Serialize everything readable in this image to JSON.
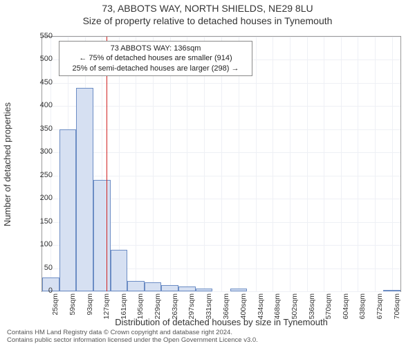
{
  "chart": {
    "type": "histogram",
    "title1": "73, ABBOTS WAY, NORTH SHIELDS, NE29 8LU",
    "title2": "Size of property relative to detached houses in Tynemouth",
    "title_fontsize": 14,
    "ylabel": "Number of detached properties",
    "xlabel": "Distribution of detached houses by size in Tynemouth",
    "label_fontsize": 13,
    "tick_fontsize": 11,
    "background_color": "#ffffff",
    "grid_color": "#eef0f5",
    "axis_color": "#999999",
    "bar_fill": "#d6e0f2",
    "bar_stroke": "#6b8cc4",
    "refline_color": "#d02020",
    "refline_x": 136,
    "ylim": [
      0,
      550
    ],
    "ytick_step": 50,
    "yticks_labels": [
      "0",
      "50",
      "100",
      "150",
      "200",
      "250",
      "300",
      "350",
      "400",
      "450",
      "500",
      "550"
    ],
    "xtick_labels": [
      "25sqm",
      "59sqm",
      "93sqm",
      "127sqm",
      "161sqm",
      "195sqm",
      "229sqm",
      "263sqm",
      "297sqm",
      "331sqm",
      "366sqm",
      "400sqm",
      "434sqm",
      "468sqm",
      "502sqm",
      "536sqm",
      "570sqm",
      "604sqm",
      "638sqm",
      "672sqm",
      "706sqm"
    ],
    "xtick_positions": [
      25,
      59,
      93,
      127,
      161,
      195,
      229,
      263,
      297,
      331,
      366,
      400,
      434,
      468,
      502,
      536,
      570,
      604,
      638,
      672,
      706
    ],
    "xlim": [
      8,
      723
    ],
    "bars": [
      {
        "x": 25,
        "v": 30
      },
      {
        "x": 59,
        "v": 350
      },
      {
        "x": 93,
        "v": 440
      },
      {
        "x": 127,
        "v": 240
      },
      {
        "x": 161,
        "v": 90
      },
      {
        "x": 195,
        "v": 22
      },
      {
        "x": 229,
        "v": 20
      },
      {
        "x": 263,
        "v": 14
      },
      {
        "x": 297,
        "v": 10
      },
      {
        "x": 331,
        "v": 6
      },
      {
        "x": 366,
        "v": 0
      },
      {
        "x": 400,
        "v": 6
      },
      {
        "x": 434,
        "v": 0
      },
      {
        "x": 468,
        "v": 0
      },
      {
        "x": 502,
        "v": 0
      },
      {
        "x": 536,
        "v": 0
      },
      {
        "x": 570,
        "v": 0
      },
      {
        "x": 604,
        "v": 0
      },
      {
        "x": 638,
        "v": 0
      },
      {
        "x": 672,
        "v": 0
      },
      {
        "x": 706,
        "v": 3
      }
    ],
    "bar_width_sqm": 34,
    "annotation": {
      "line1": "73 ABBOTS WAY: 136sqm",
      "line2": "← 75% of detached houses are smaller (914)",
      "line3": "25% of semi-detached houses are larger (298) →",
      "fontsize": 11,
      "border_color": "#888888",
      "bg": "#ffffff"
    },
    "footer1": "Contains HM Land Registry data © Crown copyright and database right 2024.",
    "footer2": "Contains public sector information licensed under the Open Government Licence v3.0.",
    "footer_fontsize": 9.5
  }
}
